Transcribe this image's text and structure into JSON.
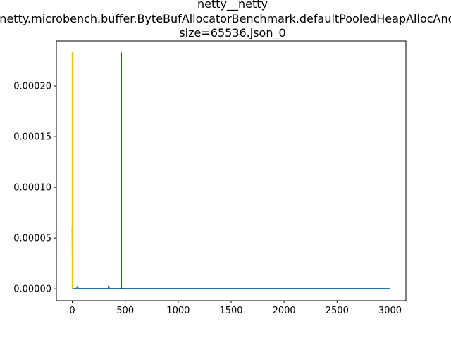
{
  "chart_data": {
    "type": "line",
    "title_lines": [
      "netty__netty",
      "io.netty.microbench.buffer.ByteBufAllocatorBenchmark.defaultPooledHeapAllocAndFree",
      "size=65536.json_0"
    ],
    "xlabel": "",
    "ylabel": "",
    "xlim": [
      -150,
      3150
    ],
    "ylim": [
      -1.17e-05,
      0.0002445
    ],
    "x_ticks": [
      0,
      500,
      1000,
      1500,
      2000,
      2500,
      3000
    ],
    "x_tick_labels": [
      "0",
      "500",
      "1000",
      "1500",
      "2000",
      "2500",
      "3000"
    ],
    "y_ticks": [
      0,
      5e-05,
      0.0001,
      0.00015,
      0.0002
    ],
    "y_tick_labels": [
      "0.00000",
      "0.00005",
      "0.00010",
      "0.00015",
      "0.00020"
    ],
    "grid": false,
    "legend": "none",
    "series": [
      {
        "color": "#1f77b4",
        "x": [
          0,
          1,
          2,
          3,
          5,
          10,
          20,
          40,
          45,
          50,
          55,
          60,
          100,
          200,
          340,
          342,
          344,
          346,
          350,
          400,
          600,
          1000,
          1500,
          2000,
          2500,
          3000
        ],
        "y": [
          6e-05,
          4.5e-05,
          2e-05,
          5e-07,
          2e-07,
          2e-07,
          2e-07,
          2e-07,
          1.5e-06,
          3e-07,
          8e-07,
          2e-07,
          2e-07,
          2e-07,
          2e-07,
          3e-06,
          5e-07,
          2.5e-06,
          2e-07,
          2e-07,
          2e-07,
          2e-07,
          2e-07,
          2e-07,
          2e-07,
          2e-07
        ]
      },
      {
        "color": "#e8c800",
        "x": [
          0,
          0,
          3,
          3,
          6,
          6
        ],
        "y": [
          2e-07,
          0.000233,
          0.000233,
          2e-07,
          2e-07,
          0.000233
        ]
      },
      {
        "color": "#0000cc",
        "x": [
          462,
          462
        ],
        "y": [
          2e-07,
          0.000233
        ]
      }
    ]
  }
}
